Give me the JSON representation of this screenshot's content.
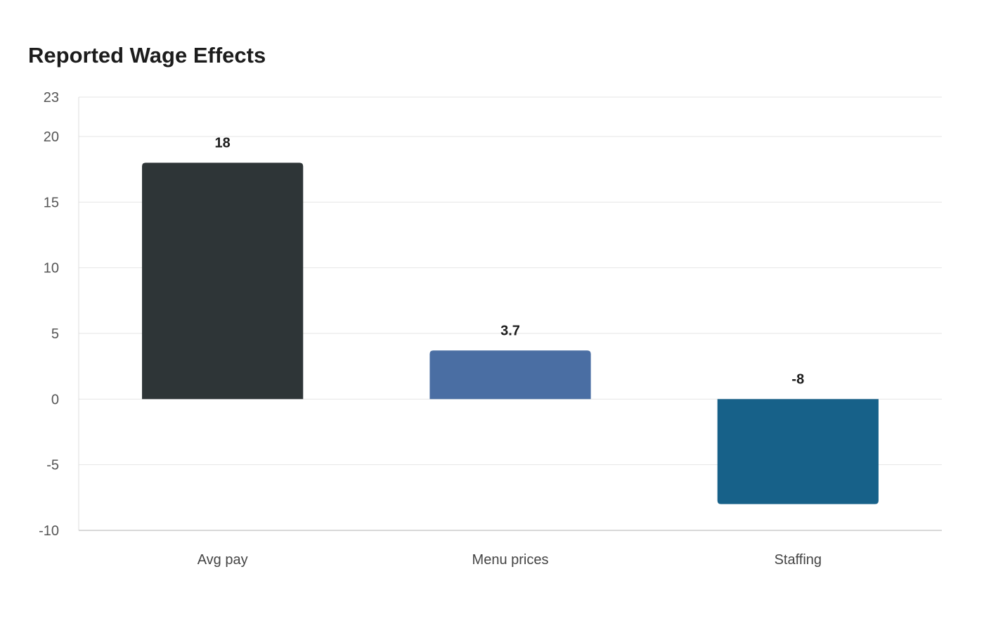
{
  "chart_data": {
    "type": "bar",
    "title": "Reported Wage Effects",
    "xlabel": "",
    "ylabel": "",
    "categories": [
      "Avg pay",
      "Menu prices",
      "Staffing"
    ],
    "values": [
      18,
      3.7,
      -8
    ],
    "value_labels": [
      "18",
      "3.7",
      "-8"
    ],
    "colors": [
      "#2e3537",
      "#4a6ea3",
      "#176189"
    ],
    "ylim": [
      -10,
      23
    ],
    "yticks": [
      -10,
      -5,
      0,
      5,
      10,
      15,
      20,
      23
    ],
    "grid": true,
    "legend": "none"
  }
}
